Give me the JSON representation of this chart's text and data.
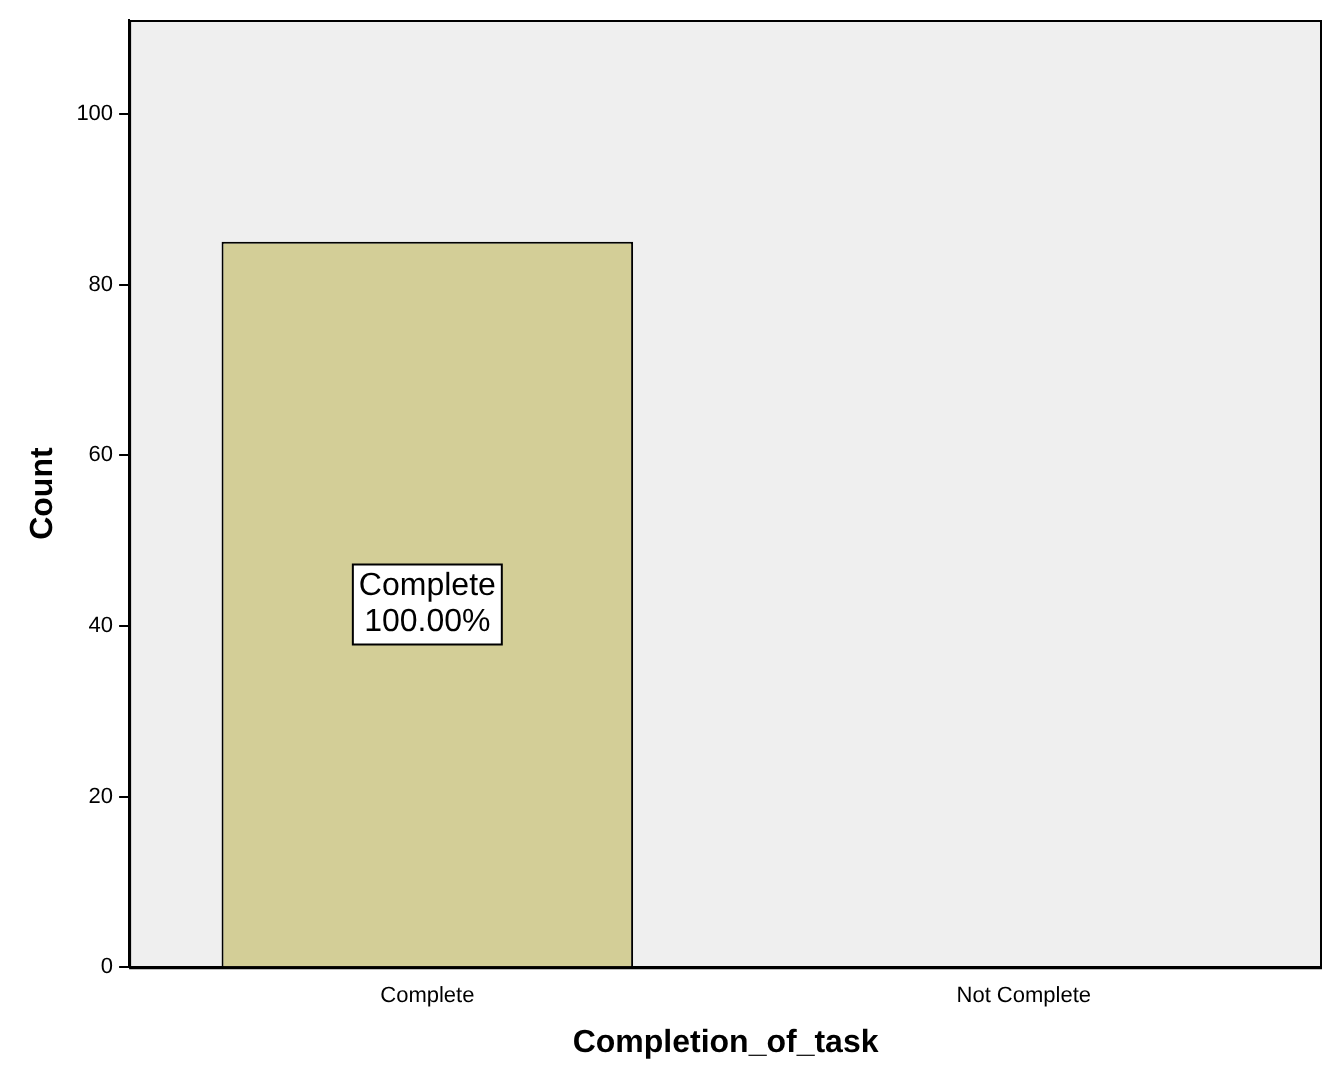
{
  "chart_data": {
    "type": "bar",
    "xlabel": "Completion_of_task",
    "ylabel": "Count",
    "categories": [
      "Complete",
      "Not Complete"
    ],
    "values": [
      85,
      0
    ],
    "color": "#d3ce97",
    "value_labels": [
      "Complete\n100.00%",
      null
    ],
    "ylim": [
      0,
      111
    ],
    "yticks": [
      0,
      20,
      40,
      60,
      80,
      100
    ],
    "grid": false,
    "legend": false
  }
}
